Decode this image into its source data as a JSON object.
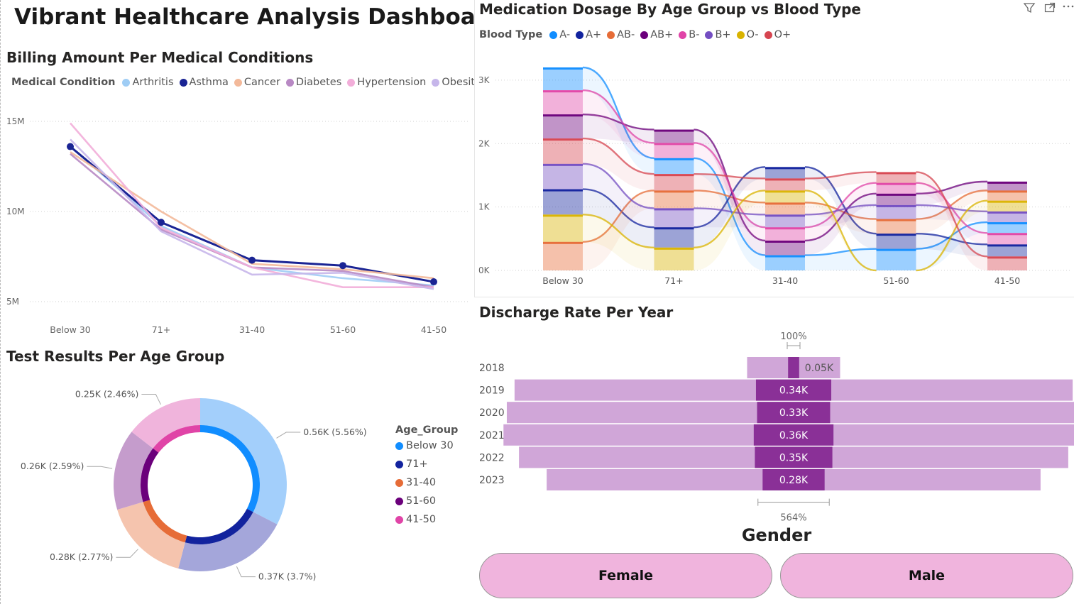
{
  "dashboard_title": "Vibrant Healthcare Analysis Dashboard",
  "colors": {
    "arthritis": "#9fcdf5",
    "asthma": "#1a2494",
    "cancer": "#f3b99a",
    "diabetes": "#b889c4",
    "hypertension": "#f2aed9",
    "obesity": "#c6b6ea",
    "a_neg": "#118dff",
    "a_pos": "#12239e",
    "ab_neg": "#e66c37",
    "ab_pos": "#6b007b",
    "b_neg": "#e044a7",
    "b_pos": "#744ec2",
    "o_neg": "#d9b300",
    "o_pos": "#d64550",
    "discharge_outer": "#d0a6d8",
    "discharge_inner": "#8a3097",
    "gender_button": "#f0b4dd"
  },
  "icons": {
    "filter": "filter-icon",
    "focus": "focus-mode-icon",
    "more": "more-options-icon"
  },
  "chart_data": [
    {
      "id": "billing",
      "type": "line",
      "title": "Billing Amount Per Medical Conditions",
      "legend_title": "Medical Condition",
      "legend_position": "top-left",
      "categories": [
        "Below 30",
        "71+",
        "31-40",
        "51-60",
        "41-50"
      ],
      "yticks": [
        "15M",
        "10M",
        "5M"
      ],
      "ylim": [
        5000000,
        15000000
      ],
      "grid": true,
      "series": [
        {
          "name": "Arthritis",
          "color": "#9fcdf5",
          "values": [
            13600000,
            9200000,
            6900000,
            6300000,
            5900000
          ]
        },
        {
          "name": "Asthma",
          "color": "#1a2494",
          "values": [
            13600000,
            9400000,
            7300000,
            7000000,
            6100000
          ],
          "markers": true
        },
        {
          "name": "Cancer",
          "color": "#f3b99a",
          "values": [
            13300000,
            10000000,
            7100000,
            6800000,
            6300000
          ]
        },
        {
          "name": "Diabetes",
          "color": "#b889c4",
          "values": [
            13200000,
            9000000,
            6900000,
            6700000,
            5800000
          ]
        },
        {
          "name": "Hypertension",
          "color": "#f2aed9",
          "values": [
            14900000,
            9100000,
            6900000,
            5800000,
            5800000
          ]
        },
        {
          "name": "Obesity",
          "color": "#c6b6ea",
          "values": [
            14000000,
            8900000,
            6500000,
            6600000,
            5700000
          ]
        }
      ]
    },
    {
      "id": "medication",
      "type": "bar",
      "stacked": true,
      "ribbon": true,
      "title": "Medication Dosage By Age Group vs Blood Type",
      "legend_title": "Blood Type",
      "legend_position": "top-left",
      "categories": [
        "Below 30",
        "71+",
        "31-40",
        "51-60",
        "41-50"
      ],
      "yticks": [
        "3K",
        "2K",
        "1K",
        "0K"
      ],
      "ylim": [
        0,
        3200
      ],
      "grid": true,
      "series": [
        {
          "name": "A-",
          "color": "#118dff",
          "values": [
            360,
            250,
            240,
            340,
            170
          ]
        },
        {
          "name": "A+",
          "color": "#12239e",
          "values": [
            400,
            320,
            180,
            240,
            190
          ]
        },
        {
          "name": "AB-",
          "color": "#e66c37",
          "values": [
            450,
            280,
            190,
            230,
            160
          ]
        },
        {
          "name": "AB+",
          "color": "#6b007b",
          "values": [
            380,
            210,
            230,
            180,
            140
          ]
        },
        {
          "name": "B-",
          "color": "#e044a7",
          "values": [
            380,
            240,
            210,
            170,
            180
          ]
        },
        {
          "name": "B+",
          "color": "#744ec2",
          "values": [
            400,
            300,
            200,
            220,
            170
          ]
        },
        {
          "name": "O-",
          "color": "#d9b300",
          "values": [
            430,
            360,
            190,
            0,
            170
          ]
        },
        {
          "name": "O+",
          "color": "#d64550",
          "values": [
            400,
            260,
            190,
            170,
            220
          ]
        }
      ]
    },
    {
      "id": "discharge",
      "type": "bar",
      "variant": "funnel",
      "title": "Discharge Rate Per Year",
      "categories": [
        "2018",
        "2019",
        "2020",
        "2021",
        "2022",
        "2023"
      ],
      "values": [
        0.05,
        0.34,
        0.33,
        0.36,
        0.35,
        0.28
      ],
      "outer_values": [
        0.42,
        2.52,
        2.59,
        2.62,
        2.48,
        2.23
      ],
      "data_labels": [
        "0.05K",
        "0.34K",
        "0.33K",
        "0.36K",
        "0.35K",
        "0.28K"
      ],
      "top_label": "100%",
      "bottom_label": "564%"
    },
    {
      "id": "test_results",
      "type": "pie",
      "variant": "donut",
      "title": "Test Results Per Age Group",
      "legend_title": "Age_Group",
      "legend_position": "right",
      "categories": [
        "Below 30",
        "71+",
        "31-40",
        "51-60",
        "41-50"
      ],
      "values": [
        0.56,
        0.37,
        0.28,
        0.26,
        0.25
      ],
      "labels": [
        "0.56K (5.56%)",
        "0.37K (3.7%)",
        "0.28K (2.77%)",
        "0.26K (2.59%)",
        "0.25K (2.46%)"
      ],
      "outer_colors": [
        "#a3cffb",
        "#a4a6da",
        "#f5c4ae",
        "#c59ccc",
        "#f0b4dc"
      ],
      "inner_colors": [
        "#118dff",
        "#12239e",
        "#e66c37",
        "#6b007b",
        "#e044a7"
      ]
    }
  ],
  "gender": {
    "title": "Gender",
    "options": [
      "Female",
      "Male"
    ]
  }
}
